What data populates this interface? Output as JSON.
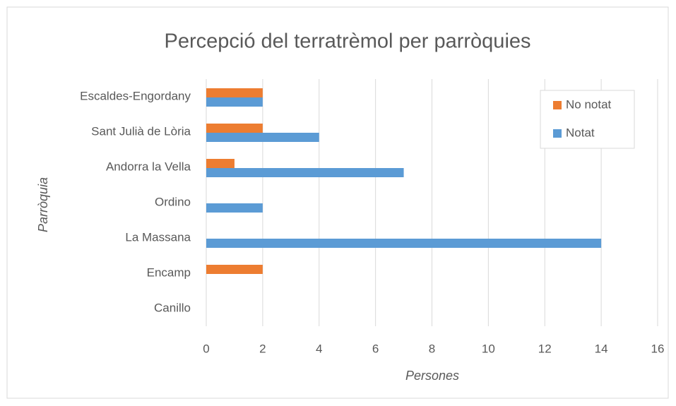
{
  "chart_data": {
    "type": "hbar",
    "title": "Percepció del terratrèmol per parròquies",
    "x_label": "Persones",
    "y_label": "Parròquia",
    "categories": [
      "Canillo",
      "Encamp",
      "La Massana",
      "Ordino",
      "Andorra la Vella",
      "Sant Julià de Lòria",
      "Escaldes-Engordany"
    ],
    "series": [
      {
        "name": "Notat",
        "color": "#5b9bd5",
        "values": [
          0,
          0,
          14,
          2,
          7,
          4,
          2
        ]
      },
      {
        "name": "No notat",
        "color": "#ed7d31",
        "values": [
          0,
          2,
          0,
          0,
          1,
          2,
          2
        ]
      }
    ],
    "xlim": [
      0,
      16
    ],
    "xticks": [
      0,
      2,
      4,
      6,
      8,
      10,
      12,
      14,
      16
    ],
    "grid": true,
    "legend": "top-right"
  }
}
